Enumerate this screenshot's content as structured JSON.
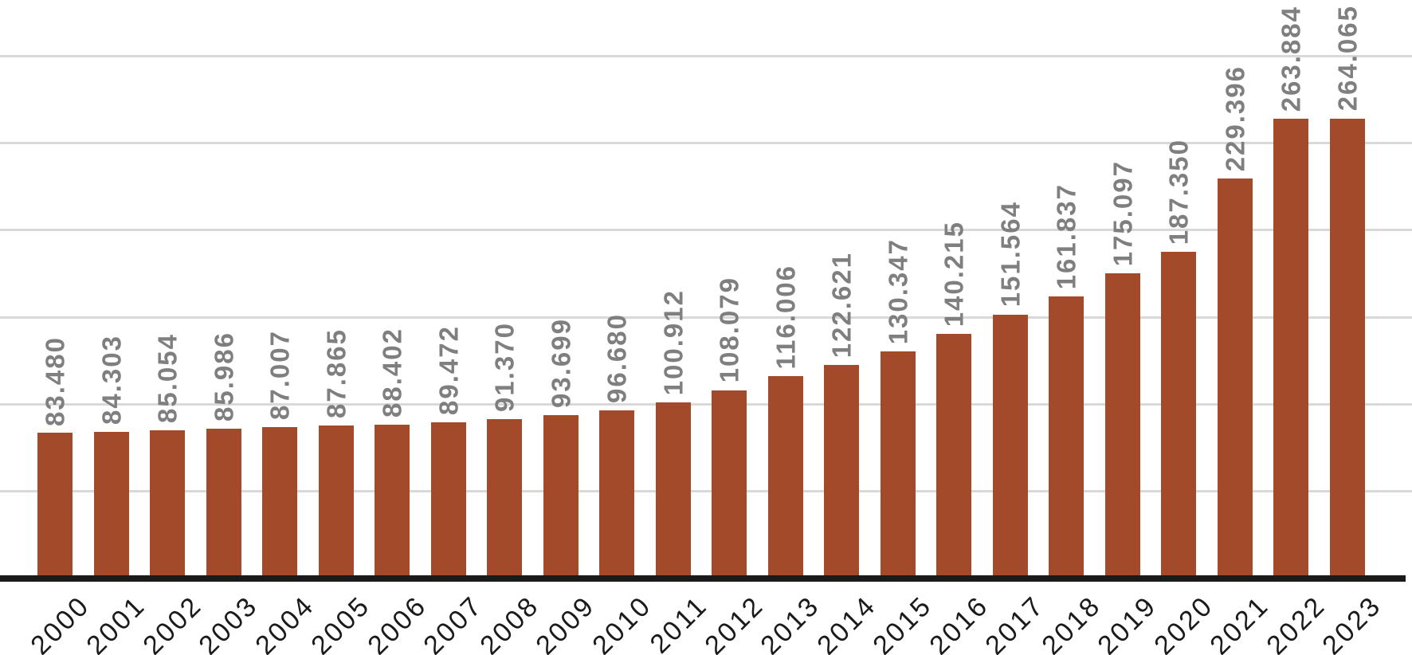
{
  "chart_data": {
    "type": "bar",
    "title": "",
    "xlabel": "",
    "ylabel": "",
    "categories": [
      "2000",
      "2001",
      "2002",
      "2003",
      "2004",
      "2005",
      "2006",
      "2007",
      "2008",
      "2009",
      "2010",
      "2011",
      "2012",
      "2013",
      "2014",
      "2015",
      "2016",
      "2017",
      "2018",
      "2019",
      "2020",
      "2021",
      "2022",
      "2023"
    ],
    "values": [
      83480,
      84303,
      85054,
      85986,
      87007,
      87865,
      88402,
      89472,
      91370,
      93699,
      96680,
      100912,
      108079,
      116006,
      122621,
      130347,
      140215,
      151564,
      161837,
      175097,
      187350,
      229396,
      263884,
      264065
    ],
    "value_labels": [
      "83.480",
      "84.303",
      "85.054",
      "85.986",
      "87.007",
      "87.865",
      "88.402",
      "89.472",
      "91.370",
      "93.699",
      "96.680",
      "100.912",
      "108.079",
      "116.006",
      "122.621",
      "130.347",
      "140.215",
      "151.564",
      "161.837",
      "175.097",
      "187.350",
      "229.396",
      "263.884",
      "264.065"
    ],
    "ylim": [
      0,
      300000
    ],
    "gridline_step": 50000,
    "grid": true,
    "legend": false,
    "y_tick_labels_shown": false,
    "value_label_rotation_deg": 90,
    "x_label_rotation_deg": 45,
    "colors": {
      "bar": "#A34A2B",
      "value_label": "#7F7F7F",
      "x_axis_label": "#1A1A1A",
      "gridline": "#D9D9D9",
      "axis_line": "#1A1A1A",
      "background": "#FFFFFF"
    }
  }
}
